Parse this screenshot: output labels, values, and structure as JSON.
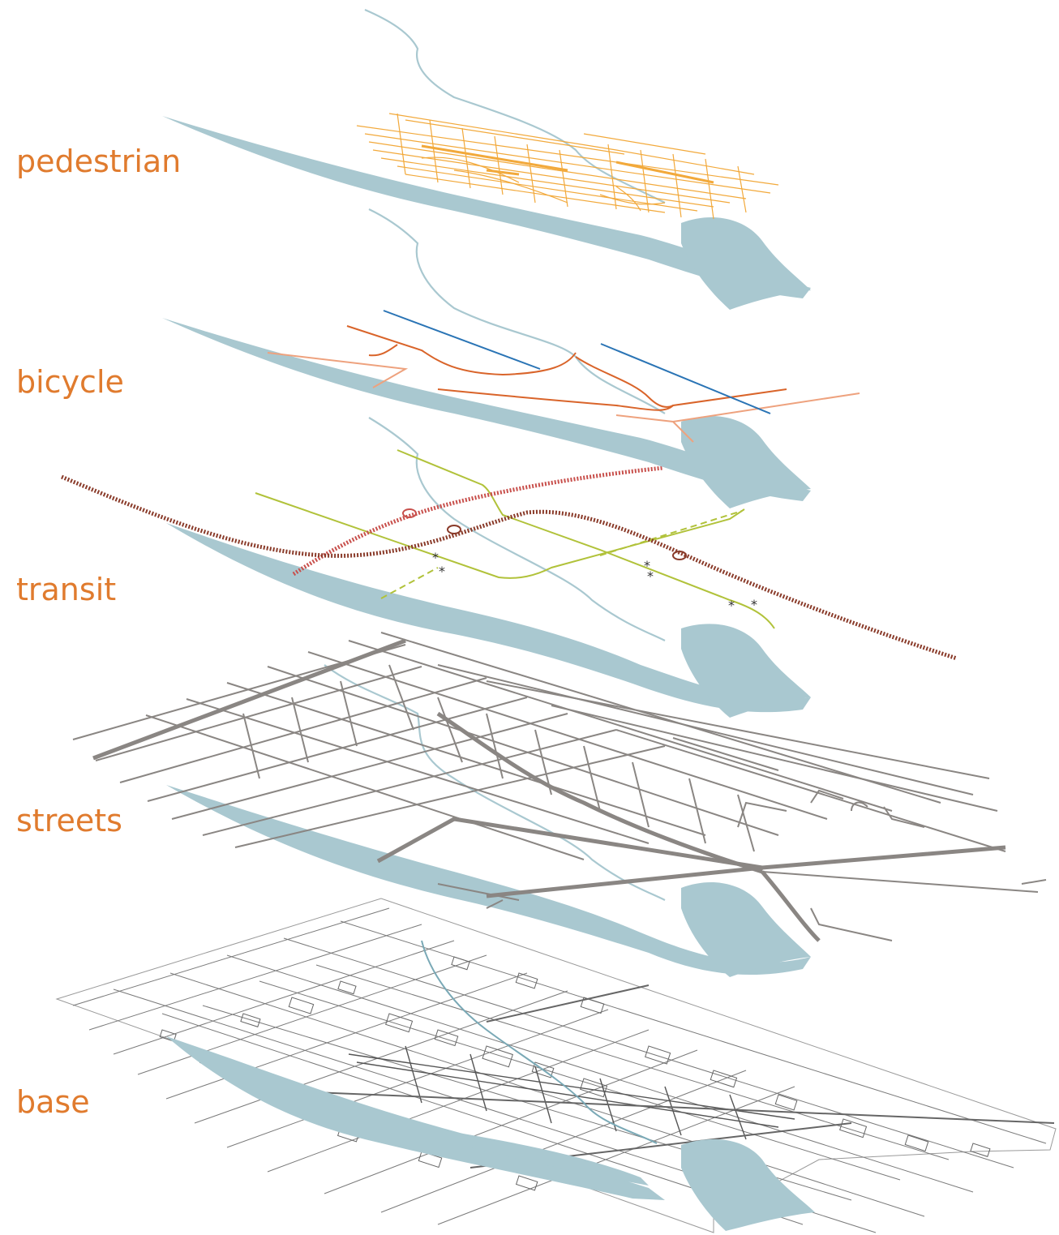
{
  "layers": [
    {
      "id": "pedestrian",
      "label": "pedestrian"
    },
    {
      "id": "bicycle",
      "label": "bicycle"
    },
    {
      "id": "transit",
      "label": "transit"
    },
    {
      "id": "streets",
      "label": "streets"
    },
    {
      "id": "base",
      "label": "base"
    }
  ],
  "colors": {
    "label": "#e07b2e",
    "water": "#a9c8d0",
    "pedestrian": "#f2a93b",
    "bicycle_main": "#d9642a",
    "bicycle_secondary": "#eea27e",
    "bicycle_blue": "#2a74b5",
    "transit_green": "#b1c23a",
    "transit_rail_dark": "#8a3b2a",
    "transit_rail_red": "#c8504c",
    "streets": "#8a8683",
    "base_lines": "#6e6e6e"
  }
}
